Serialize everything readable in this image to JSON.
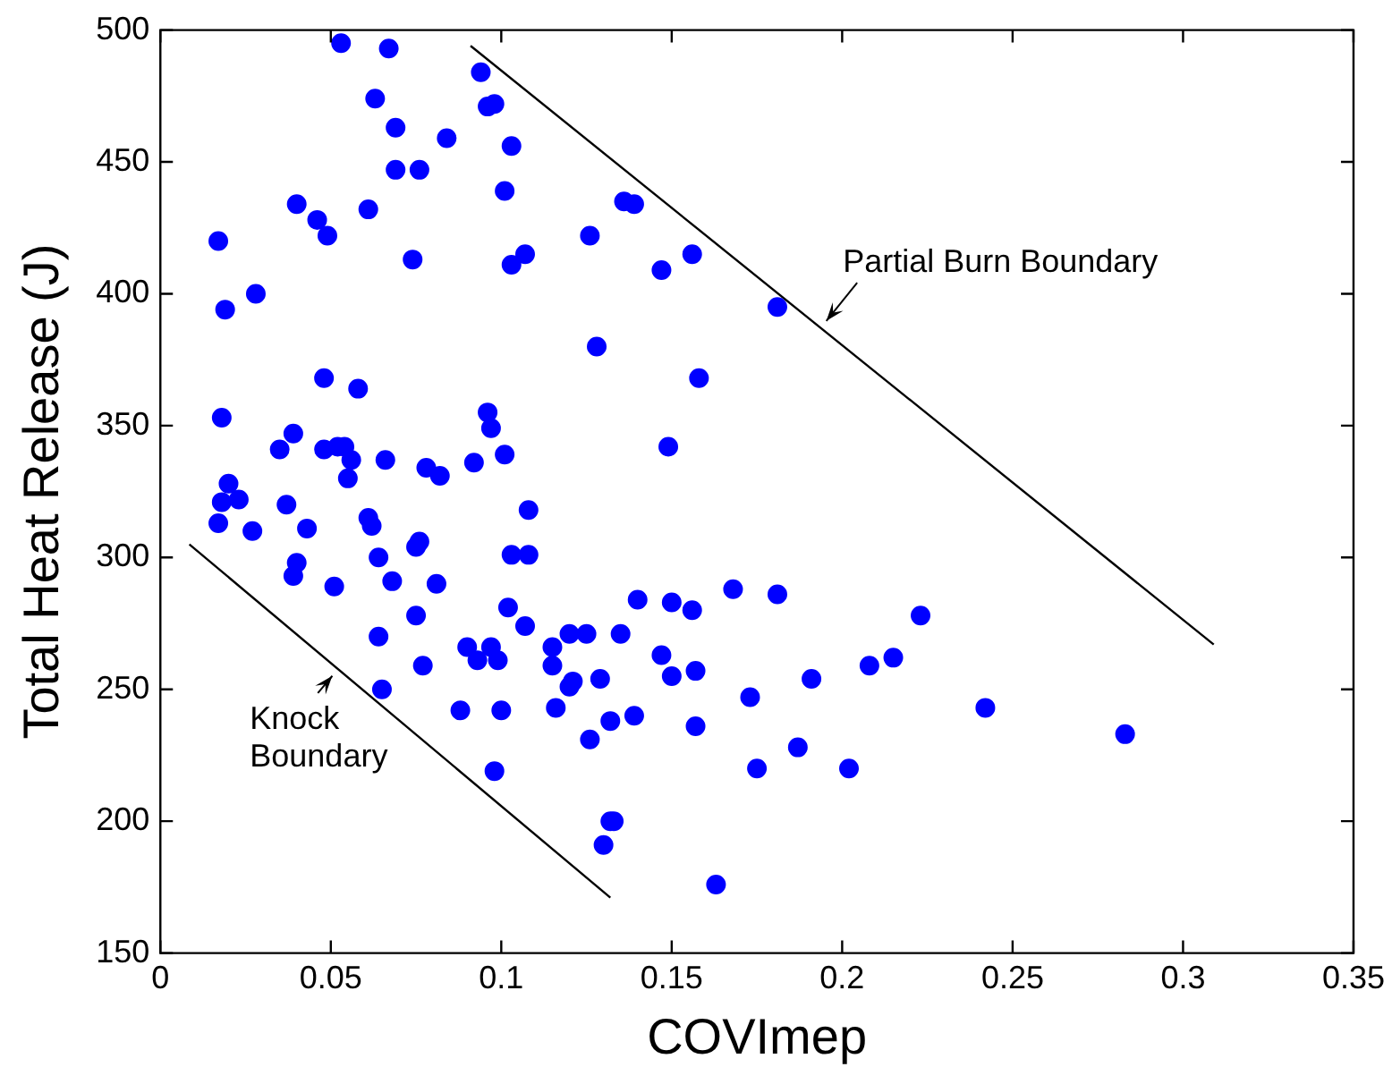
{
  "chart_data": {
    "type": "scatter",
    "xlabel": "COVImep",
    "ylabel": "Total Heat Release (J)",
    "xlim": [
      0,
      0.35
    ],
    "ylim": [
      150,
      500
    ],
    "xticks": [
      0,
      0.05,
      0.1,
      0.15,
      0.2,
      0.25,
      0.3,
      0.35
    ],
    "yticks": [
      150,
      200,
      250,
      300,
      350,
      400,
      450,
      500
    ],
    "grid": false,
    "legend": false,
    "series": [
      {
        "color": "#0000ff",
        "marker": "circle",
        "x": [
          0.053,
          0.067,
          0.094,
          0.096,
          0.098,
          0.063,
          0.069,
          0.084,
          0.103,
          0.069,
          0.076,
          0.101,
          0.04,
          0.046,
          0.049,
          0.061,
          0.017,
          0.074,
          0.103,
          0.107,
          0.028,
          0.019,
          0.048,
          0.058,
          0.018,
          0.039,
          0.035,
          0.048,
          0.052,
          0.054,
          0.056,
          0.066,
          0.078,
          0.082,
          0.092,
          0.096,
          0.097,
          0.101,
          0.136,
          0.139,
          0.126,
          0.156,
          0.147,
          0.181,
          0.128,
          0.158,
          0.149,
          0.02,
          0.018,
          0.023,
          0.017,
          0.027,
          0.037,
          0.043,
          0.055,
          0.061,
          0.062,
          0.04,
          0.039,
          0.051,
          0.064,
          0.068,
          0.076,
          0.075,
          0.081,
          0.075,
          0.064,
          0.077,
          0.065,
          0.088,
          0.1,
          0.098,
          0.09,
          0.093,
          0.097,
          0.099,
          0.103,
          0.108,
          0.108,
          0.102,
          0.107,
          0.115,
          0.115,
          0.12,
          0.12,
          0.116,
          0.125,
          0.135,
          0.14,
          0.15,
          0.156,
          0.168,
          0.181,
          0.129,
          0.121,
          0.147,
          0.15,
          0.157,
          0.132,
          0.139,
          0.126,
          0.157,
          0.173,
          0.191,
          0.187,
          0.175,
          0.202,
          0.208,
          0.215,
          0.132,
          0.133,
          0.13,
          0.163,
          0.223,
          0.242,
          0.283
        ],
        "values": [
          495,
          493,
          484,
          471,
          472,
          474,
          463,
          459,
          456,
          447,
          447,
          439,
          434,
          428,
          422,
          432,
          420,
          413,
          411,
          415,
          400,
          394,
          368,
          364,
          353,
          347,
          341,
          341,
          342,
          342,
          337,
          337,
          334,
          331,
          336,
          355,
          349,
          339,
          435,
          434,
          422,
          415,
          409,
          395,
          380,
          368,
          342,
          328,
          321,
          322,
          313,
          310,
          320,
          311,
          330,
          315,
          312,
          298,
          293,
          289,
          300,
          291,
          306,
          304,
          290,
          278,
          270,
          259,
          250,
          242,
          242,
          219,
          266,
          261,
          266,
          261,
          301,
          301,
          318,
          281,
          274,
          266,
          259,
          271,
          251,
          243,
          271,
          271,
          284,
          283,
          280,
          288,
          286,
          254,
          253,
          263,
          255,
          257,
          238,
          240,
          231,
          236,
          247,
          254,
          228,
          220,
          220,
          259,
          262,
          200,
          200,
          191,
          176,
          278,
          243,
          233
        ]
      },
      {
        "type": "line",
        "marker": "none",
        "color": "#000000",
        "x": [
          0.0085,
          0.132
        ],
        "values": [
          305,
          171
        ]
      },
      {
        "type": "line",
        "marker": "none",
        "color": "#000000",
        "x": [
          0.091,
          0.309
        ],
        "values": [
          494,
          267
        ]
      }
    ],
    "annotations": [
      "Partial Burn Boundary",
      "Knock\nBoundary"
    ]
  }
}
